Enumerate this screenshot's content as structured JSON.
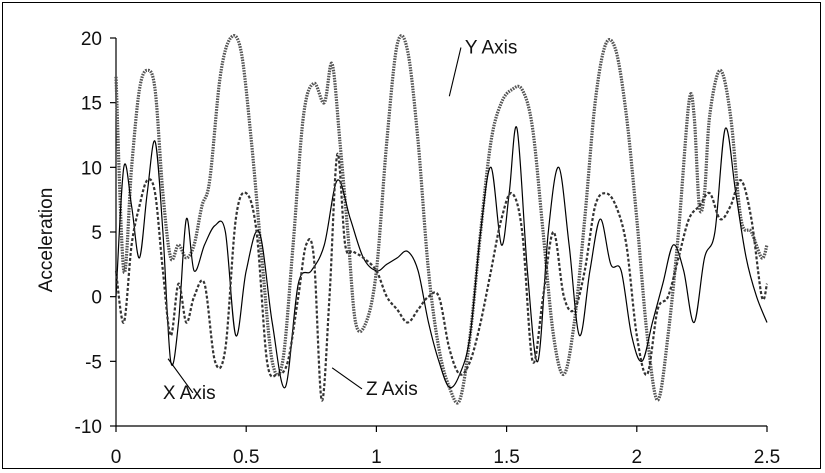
{
  "chart_data": {
    "type": "line",
    "title": "",
    "xlabel": "",
    "ylabel": "Acceleration",
    "xlim": [
      0,
      2.5
    ],
    "ylim": [
      -10,
      20
    ],
    "xticks": [
      "0",
      "0.5",
      "1",
      "1.5",
      "2",
      "2.5"
    ],
    "yticks": [
      "20",
      "15",
      "10",
      "5",
      "0",
      "-5",
      "-10"
    ],
    "grid": false,
    "series": [
      {
        "name": "Y Axis",
        "style": "thick-dotted",
        "color": "#555555",
        "x": [
          0,
          0.03,
          0.06,
          0.09,
          0.12,
          0.15,
          0.18,
          0.21,
          0.24,
          0.27,
          0.3,
          0.33,
          0.36,
          0.4,
          0.44,
          0.48,
          0.52,
          0.56,
          0.6,
          0.64,
          0.68,
          0.72,
          0.76,
          0.8,
          0.83,
          0.86,
          0.89,
          0.92,
          0.96,
          1.0,
          1.04,
          1.08,
          1.12,
          1.16,
          1.2,
          1.24,
          1.28,
          1.32,
          1.36,
          1.4,
          1.44,
          1.48,
          1.52,
          1.56,
          1.6,
          1.64,
          1.68,
          1.72,
          1.76,
          1.8,
          1.84,
          1.88,
          1.92,
          1.96,
          2.0,
          2.04,
          2.08,
          2.12,
          2.16,
          2.2,
          2.22,
          2.24,
          2.26,
          2.28,
          2.32,
          2.36,
          2.4,
          2.44,
          2.48,
          2.5
        ],
        "y": [
          17,
          2,
          10,
          16,
          17.5,
          16,
          8,
          3,
          4,
          3,
          4,
          7,
          9,
          17,
          20,
          19,
          12,
          3,
          -5,
          -5,
          4,
          14,
          16.5,
          15,
          18,
          12,
          5,
          -2,
          -2,
          2,
          12,
          19.5,
          19,
          12,
          2,
          -4,
          -7,
          -8,
          -3,
          5,
          12,
          15,
          16,
          16,
          13,
          5,
          -3,
          -6,
          -2,
          6,
          15,
          19.5,
          19,
          14,
          6,
          -3,
          -8,
          -3,
          5,
          15,
          14,
          7,
          8,
          14,
          17.5,
          14,
          6,
          5,
          3,
          4
        ]
      },
      {
        "name": "X Axis",
        "style": "solid",
        "color": "#000000",
        "x": [
          0,
          0.03,
          0.06,
          0.09,
          0.12,
          0.15,
          0.18,
          0.21,
          0.24,
          0.27,
          0.3,
          0.34,
          0.38,
          0.42,
          0.46,
          0.5,
          0.55,
          0.6,
          0.65,
          0.7,
          0.75,
          0.8,
          0.85,
          0.9,
          0.95,
          1.0,
          1.04,
          1.08,
          1.12,
          1.16,
          1.2,
          1.24,
          1.28,
          1.32,
          1.36,
          1.4,
          1.44,
          1.48,
          1.51,
          1.54,
          1.58,
          1.62,
          1.66,
          1.7,
          1.74,
          1.78,
          1.82,
          1.86,
          1.9,
          1.94,
          1.98,
          2.02,
          2.06,
          2.1,
          2.14,
          2.18,
          2.22,
          2.26,
          2.3,
          2.34,
          2.38,
          2.42,
          2.46,
          2.5
        ],
        "y": [
          0,
          10,
          7,
          3,
          8,
          12,
          5,
          -5,
          -2,
          6,
          2,
          4,
          5.5,
          5,
          -3,
          2,
          5,
          -2,
          -7,
          1,
          2,
          4,
          9,
          6,
          3,
          2,
          2.5,
          3,
          3.5,
          2,
          -2,
          -5,
          -7,
          -6,
          -3,
          5,
          10,
          4,
          8,
          13,
          2,
          -5,
          5,
          10,
          4,
          -3,
          2,
          6,
          2.5,
          2,
          -3,
          -5,
          -2,
          1,
          4,
          2,
          -2,
          3,
          5,
          13,
          8,
          3,
          0,
          -2
        ]
      },
      {
        "name": "Z Axis",
        "style": "dashed",
        "color": "#333333",
        "x": [
          0,
          0.03,
          0.06,
          0.09,
          0.12,
          0.15,
          0.18,
          0.21,
          0.24,
          0.27,
          0.3,
          0.34,
          0.38,
          0.42,
          0.46,
          0.5,
          0.54,
          0.58,
          0.62,
          0.66,
          0.7,
          0.73,
          0.76,
          0.79,
          0.82,
          0.85,
          0.88,
          0.91,
          0.95,
          1.0,
          1.04,
          1.08,
          1.12,
          1.16,
          1.2,
          1.24,
          1.28,
          1.32,
          1.36,
          1.4,
          1.44,
          1.48,
          1.52,
          1.56,
          1.6,
          1.64,
          1.68,
          1.72,
          1.76,
          1.8,
          1.84,
          1.88,
          1.92,
          1.96,
          2.0,
          2.04,
          2.08,
          2.12,
          2.16,
          2.2,
          2.24,
          2.28,
          2.32,
          2.36,
          2.4,
          2.44,
          2.48,
          2.5
        ],
        "y": [
          2,
          -2,
          4,
          7,
          9,
          8,
          2,
          -3,
          1,
          -2,
          0,
          1,
          -5,
          -4,
          6,
          8,
          5,
          -5,
          -6,
          -5,
          0,
          4,
          3,
          -8,
          0,
          11,
          4,
          3.5,
          3,
          2,
          0,
          -1,
          -2,
          -1,
          0,
          0,
          -4,
          -6,
          -5,
          -2,
          2,
          6,
          8,
          5,
          -5,
          0,
          5,
          0,
          -1,
          2,
          7,
          8,
          7,
          4,
          -3,
          -6,
          -1,
          0,
          3,
          6,
          7,
          8,
          6,
          7,
          9,
          6,
          0,
          1
        ]
      }
    ],
    "annotations": [
      {
        "text": "Y Axis",
        "x": 1.34,
        "y": 18.8,
        "target_x": 1.28,
        "target_y": 15.5
      },
      {
        "text": "X Axis",
        "x": 0.18,
        "y": -7.9,
        "target_x": 0.2,
        "target_y": -4.8
      },
      {
        "text": "Z Axis",
        "x": 0.96,
        "y": -7.6,
        "target_x": 0.83,
        "target_y": -5.5
      }
    ]
  }
}
